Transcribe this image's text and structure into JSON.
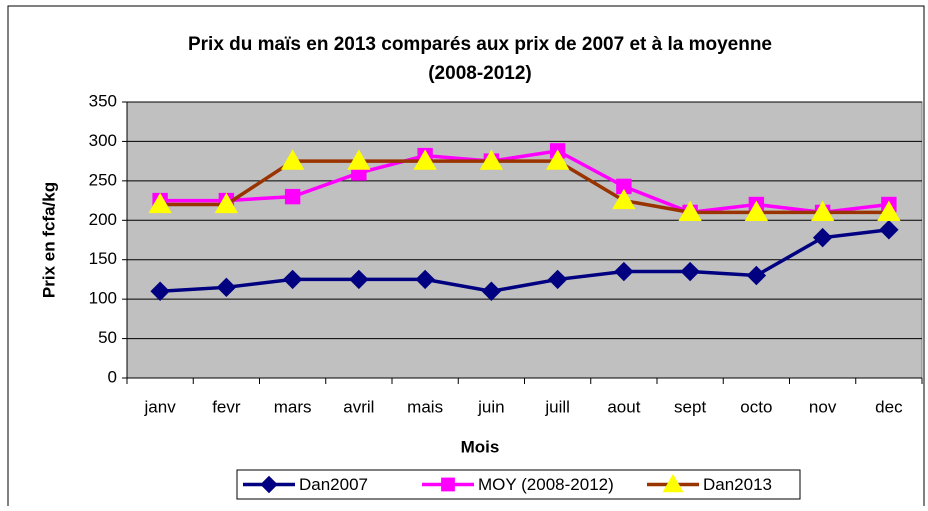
{
  "chart_data": {
    "type": "line",
    "title": [
      "Prix du maïs en 2013 comparés aux prix de 2007 et à la moyenne",
      "(2008-2012)"
    ],
    "x_label": "Mois",
    "y_label": "Prix en fcfa/kg",
    "categories": [
      "janv",
      "fevr",
      "mars",
      "avril",
      "mais",
      "juin",
      "juill",
      "aout",
      "sept",
      "octo",
      "nov",
      "dec"
    ],
    "series": [
      {
        "name": "Dan2007",
        "color": "#000080",
        "marker": "diamond",
        "marker_color": "#000080",
        "values": [
          110,
          115,
          125,
          125,
          125,
          110,
          125,
          135,
          135,
          130,
          178,
          188
        ]
      },
      {
        "name": "MOY (2008-2012)",
        "color": "#ff00ff",
        "marker": "square",
        "marker_color": "#ff00ff",
        "values": [
          225,
          225,
          230,
          260,
          282,
          275,
          288,
          243,
          210,
          220,
          210,
          220
        ]
      },
      {
        "name": "Dan2013",
        "color": "#993300",
        "marker": "triangle",
        "marker_color": "#ffff00",
        "values": [
          220,
          220,
          275,
          275,
          275,
          275,
          275,
          225,
          210,
          210,
          210,
          210
        ]
      }
    ],
    "ylim": [
      0,
      350
    ],
    "yticks": [
      0,
      50,
      100,
      150,
      200,
      250,
      300,
      350
    ],
    "grid": true,
    "plot_background": "#c0c0c0",
    "legend": "bottom"
  }
}
